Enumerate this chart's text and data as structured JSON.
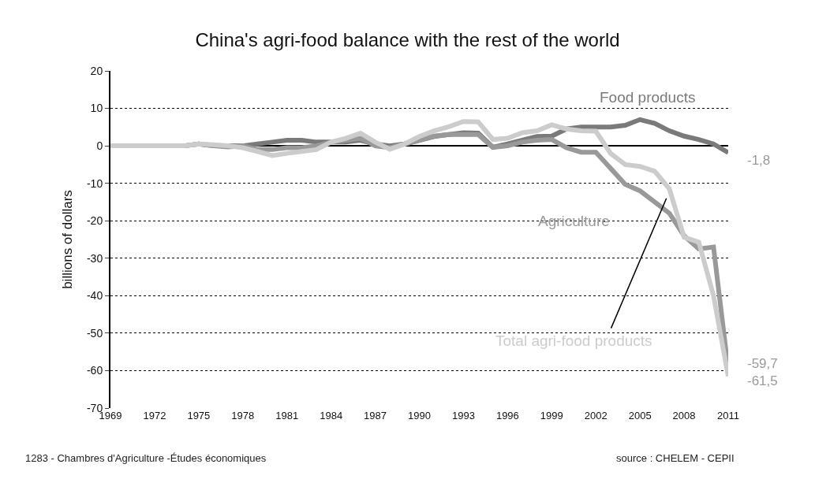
{
  "chart_data": {
    "type": "line",
    "title": "China's agri-food balance with the rest of the world",
    "ylabel": "billions of dollars",
    "x": [
      1969,
      1970,
      1971,
      1972,
      1973,
      1974,
      1975,
      1976,
      1977,
      1978,
      1979,
      1980,
      1981,
      1982,
      1983,
      1984,
      1985,
      1986,
      1987,
      1988,
      1989,
      1990,
      1991,
      1992,
      1993,
      1994,
      1995,
      1996,
      1997,
      1998,
      1999,
      2000,
      2001,
      2002,
      2003,
      2004,
      2005,
      2006,
      2007,
      2008,
      2009,
      2010,
      2011
    ],
    "series": [
      {
        "name": "Food products",
        "color": "#7a7a7a",
        "values": [
          0,
          0,
          0,
          0,
          0,
          0,
          0.5,
          0,
          0,
          0,
          0.5,
          1,
          1.5,
          1.5,
          1,
          1,
          1,
          1.5,
          0.5,
          0,
          0.5,
          1.5,
          2.5,
          3,
          3.5,
          3.4,
          -0.4,
          0.5,
          1.5,
          2.5,
          2.6,
          4.5,
          5,
          5,
          5,
          5.5,
          7,
          6,
          4,
          2.6,
          1.7,
          0.5,
          -1.8
        ],
        "value_labels": [
          null,
          null,
          null,
          null,
          null,
          null,
          null,
          null,
          null,
          null,
          null,
          null,
          null,
          null,
          null,
          null,
          null,
          null,
          null,
          null,
          null,
          null,
          null,
          null,
          null,
          null,
          null,
          null,
          null,
          null,
          null,
          null,
          null,
          null,
          null,
          null,
          null,
          null,
          null,
          null,
          null,
          null,
          "-1,8"
        ]
      },
      {
        "name": "Agriculture",
        "color": "#999999",
        "values": [
          0,
          0,
          0,
          0,
          0,
          0,
          0.5,
          0,
          -0.3,
          0,
          -1,
          -1,
          -0.5,
          -0.5,
          0,
          1,
          1.5,
          2,
          0,
          -0.5,
          0.5,
          1.5,
          2.6,
          3,
          3,
          3,
          -0.4,
          0,
          1,
          1.5,
          1.7,
          -0.5,
          -1.7,
          -1.7,
          -6,
          -10.3,
          -12,
          -15,
          -18,
          -24,
          -27.5,
          -27,
          -59.7
        ],
        "value_labels": [
          null,
          null,
          null,
          null,
          null,
          null,
          null,
          null,
          null,
          null,
          null,
          null,
          null,
          null,
          null,
          null,
          null,
          null,
          null,
          null,
          null,
          null,
          null,
          null,
          null,
          null,
          null,
          null,
          null,
          null,
          null,
          null,
          null,
          null,
          null,
          null,
          null,
          null,
          null,
          null,
          null,
          null,
          "-59,7"
        ]
      },
      {
        "name": "Total agri-food products",
        "color": "#cccccc",
        "values": [
          0,
          0,
          0,
          0,
          0,
          0,
          0.5,
          0.3,
          0,
          -0.5,
          -1.5,
          -2.6,
          -2,
          -1.5,
          -1,
          1,
          2,
          3.4,
          1,
          -0.9,
          0.5,
          2.5,
          4,
          5.1,
          6.5,
          6.4,
          1.7,
          2,
          3.5,
          4,
          5.6,
          4.5,
          4,
          3.9,
          -2,
          -5,
          -5.5,
          -6.8,
          -11.5,
          -24.4,
          -25.7,
          -40,
          -61.5
        ],
        "value_labels": [
          null,
          null,
          null,
          null,
          null,
          null,
          null,
          null,
          null,
          null,
          null,
          null,
          null,
          null,
          null,
          null,
          null,
          null,
          null,
          null,
          null,
          null,
          null,
          null,
          null,
          null,
          null,
          null,
          null,
          null,
          null,
          null,
          null,
          null,
          null,
          null,
          null,
          null,
          null,
          null,
          null,
          null,
          "-61,5"
        ]
      }
    ],
    "xlim": [
      1969,
      2011
    ],
    "xticks": [
      1969,
      1972,
      1975,
      1978,
      1981,
      1984,
      1987,
      1990,
      1993,
      1996,
      1999,
      2002,
      2005,
      2008,
      2011
    ],
    "ylim": [
      -70,
      20
    ],
    "yticks": [
      -70,
      -60,
      -50,
      -40,
      -30,
      -20,
      -10,
      0,
      10,
      20
    ],
    "grid": "y",
    "legend": false,
    "marker": "none",
    "line_style": "solid",
    "annotations": [
      "1283 - Chambres d'Agriculture -Études économiques",
      "source : CHELEM - CEPII"
    ]
  }
}
